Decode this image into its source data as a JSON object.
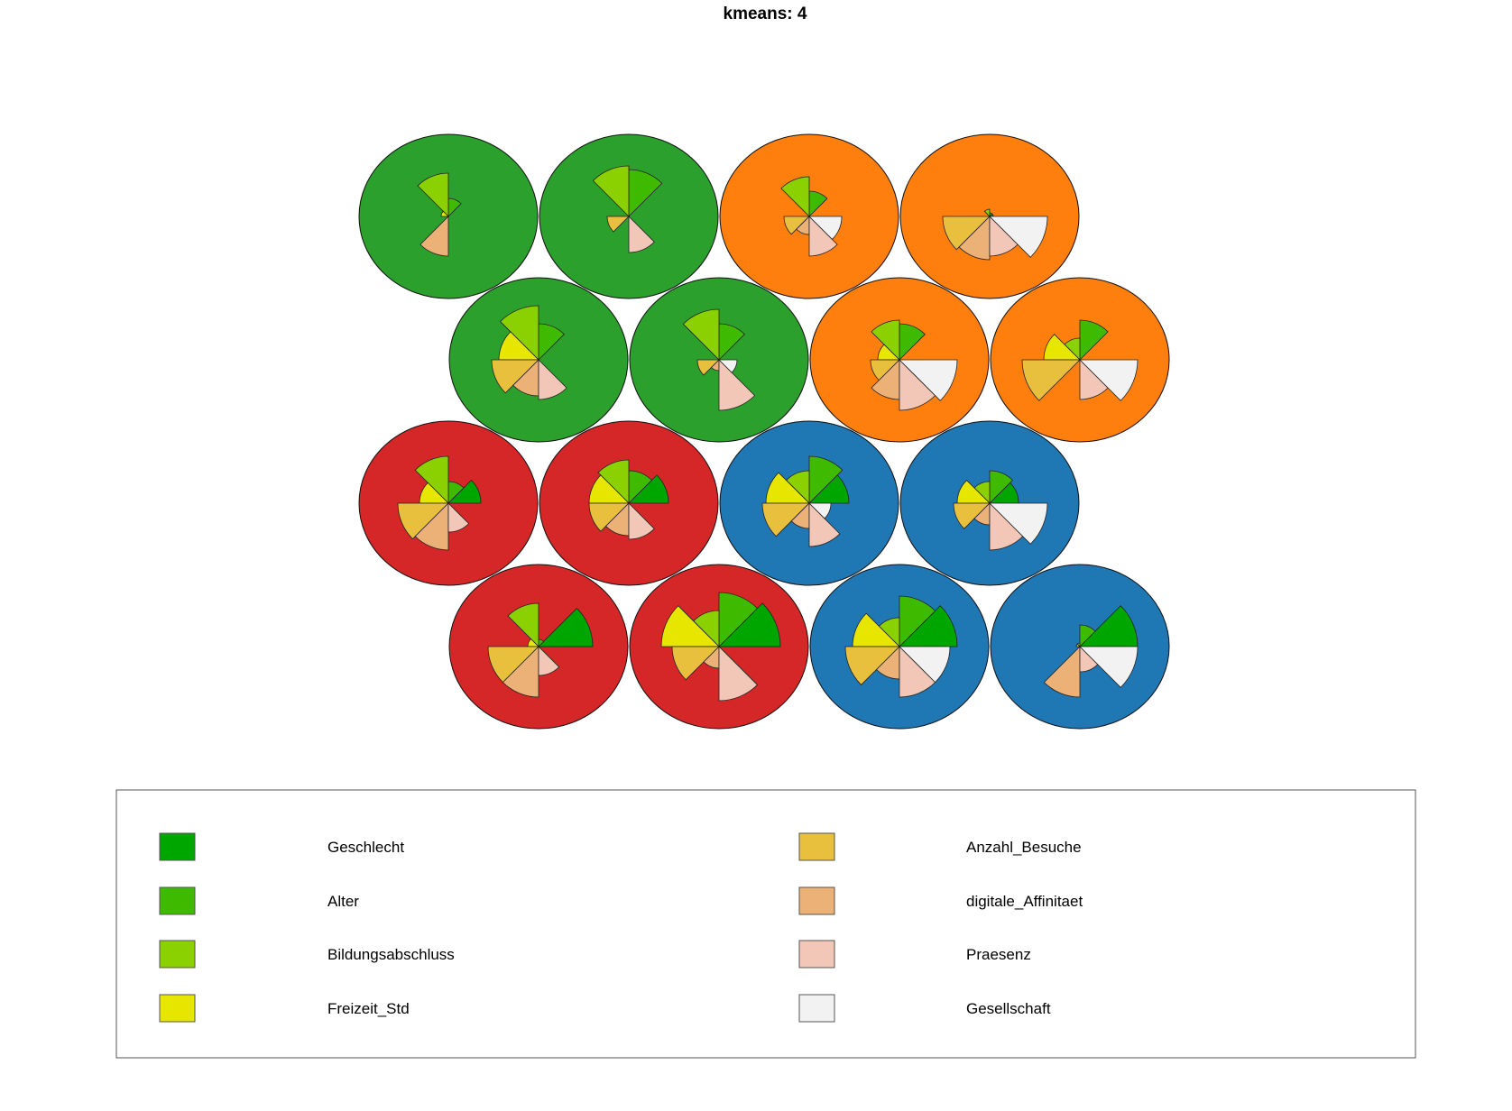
{
  "chart_data": {
    "type": "som-segment-map",
    "title": "kmeans: 4",
    "grid": {
      "rows": 4,
      "cols": 4,
      "topology": "hexagonal"
    },
    "variables": [
      {
        "name": "Geschlecht",
        "color": "#00A600"
      },
      {
        "name": "Alter",
        "color": "#3EBB00"
      },
      {
        "name": "Bildungsabschluss",
        "color": "#8BD000"
      },
      {
        "name": "Freizeit_Std",
        "color": "#E6E600"
      },
      {
        "name": "Anzahl_Besuche",
        "color": "#E8C03E"
      },
      {
        "name": "digitale_Affinitaet",
        "color": "#ECB176"
      },
      {
        "name": "Praesenz",
        "color": "#F2C7B8"
      },
      {
        "name": "Gesellschaft",
        "color": "#F2F2F2"
      }
    ],
    "clusters": [
      {
        "id": 1,
        "color": "#2CA02C"
      },
      {
        "id": 2,
        "color": "#FF7F0E"
      },
      {
        "id": 3,
        "color": "#D62728"
      },
      {
        "id": 4,
        "color": "#1F77B4"
      }
    ],
    "units": [
      {
        "row": 4,
        "col": 1,
        "cluster": 1,
        "values": [
          0.0,
          0.25,
          0.6,
          0.1,
          0.02,
          0.55,
          0.0,
          0.0
        ]
      },
      {
        "row": 4,
        "col": 2,
        "cluster": 1,
        "values": [
          0.0,
          0.65,
          0.7,
          0.0,
          0.3,
          0.0,
          0.5,
          0.0
        ]
      },
      {
        "row": 4,
        "col": 3,
        "cluster": 2,
        "values": [
          0.0,
          0.35,
          0.55,
          0.0,
          0.35,
          0.25,
          0.55,
          0.45
        ]
      },
      {
        "row": 4,
        "col": 4,
        "cluster": 2,
        "values": [
          0.05,
          0.05,
          0.1,
          0.0,
          0.65,
          0.6,
          0.55,
          0.8
        ]
      },
      {
        "row": 3,
        "col": 1,
        "cluster": 1,
        "values": [
          0.0,
          0.5,
          0.75,
          0.55,
          0.65,
          0.5,
          0.55,
          0.0
        ]
      },
      {
        "row": 3,
        "col": 2,
        "cluster": 1,
        "values": [
          0.0,
          0.5,
          0.7,
          0.0,
          0.3,
          0.15,
          0.7,
          0.25
        ]
      },
      {
        "row": 3,
        "col": 3,
        "cluster": 2,
        "values": [
          0.0,
          0.5,
          0.55,
          0.3,
          0.4,
          0.55,
          0.7,
          0.8
        ]
      },
      {
        "row": 3,
        "col": 4,
        "cluster": 2,
        "values": [
          0.0,
          0.55,
          0.3,
          0.5,
          0.8,
          0.0,
          0.55,
          0.8
        ]
      },
      {
        "row": 2,
        "col": 1,
        "cluster": 3,
        "values": [
          0.45,
          0.3,
          0.65,
          0.4,
          0.7,
          0.65,
          0.4,
          0.0
        ]
      },
      {
        "row": 2,
        "col": 2,
        "cluster": 3,
        "values": [
          0.55,
          0.45,
          0.6,
          0.55,
          0.55,
          0.45,
          0.5,
          0.0
        ]
      },
      {
        "row": 2,
        "col": 3,
        "cluster": 4,
        "values": [
          0.55,
          0.65,
          0.45,
          0.6,
          0.65,
          0.35,
          0.6,
          0.3
        ]
      },
      {
        "row": 2,
        "col": 4,
        "cluster": 4,
        "values": [
          0.4,
          0.45,
          0.3,
          0.45,
          0.5,
          0.3,
          0.65,
          0.8
        ]
      },
      {
        "row": 1,
        "col": 1,
        "cluster": 3,
        "values": [
          0.75,
          0.1,
          0.6,
          0.15,
          0.7,
          0.7,
          0.4,
          0.0
        ]
      },
      {
        "row": 1,
        "col": 2,
        "cluster": 3,
        "values": [
          0.85,
          0.75,
          0.5,
          0.8,
          0.65,
          0.3,
          0.75,
          0.0
        ]
      },
      {
        "row": 1,
        "col": 3,
        "cluster": 4,
        "values": [
          0.8,
          0.7,
          0.4,
          0.65,
          0.75,
          0.45,
          0.7,
          0.7
        ]
      },
      {
        "row": 1,
        "col": 4,
        "cluster": 4,
        "values": [
          0.8,
          0.3,
          0.05,
          0.05,
          0.0,
          0.7,
          0.35,
          0.8
        ]
      }
    ],
    "legend": {
      "position": "bottom",
      "columns": 2,
      "box": true
    }
  }
}
